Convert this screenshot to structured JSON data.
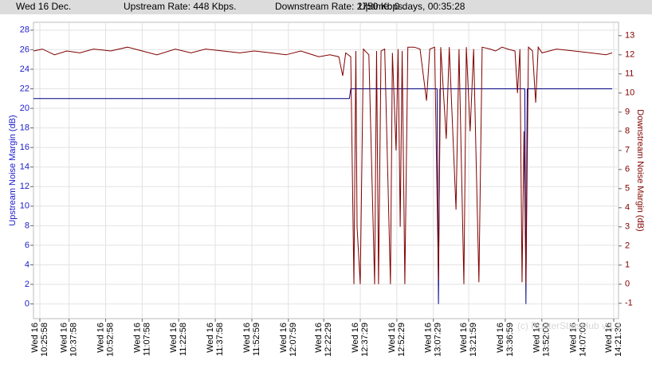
{
  "chart_data": {
    "type": "line",
    "header": {
      "date": "Wed 16 Dec.",
      "upstream_rate": "Upstream Rate: 448 Kbps.",
      "downstream_rate": "Downstream Rate: 2750 Kbps.",
      "uptime": "Uptime: 0 days, 00:35:28"
    },
    "ylabel": "Upstream Noise Margin (dB)",
    "y2label": "Downstream Noise Margin (dB)",
    "watermark": "(c) RouterStatsHub v.1.1",
    "xlim": [
      "10:23:21",
      "14:23:28"
    ],
    "xtick_day": "Wed 16",
    "xticks": [
      "10:25:58",
      "10:37:58",
      "10:52:58",
      "11:07:58",
      "11:22:58",
      "11:37:58",
      "11:52:59",
      "12:07:59",
      "12:22:29",
      "12:37:29",
      "12:52:29",
      "13:07:29",
      "13:21:59",
      "13:36:59",
      "13:52:00",
      "14:07:00",
      "14:21:30"
    ],
    "ylim": [
      -1.5,
      28.8
    ],
    "yticks": [
      0,
      2,
      4,
      6,
      8,
      10,
      12,
      14,
      16,
      18,
      20,
      22,
      24,
      26,
      28
    ],
    "y2lim": [
      -1.8,
      13.7
    ],
    "y2ticks": [
      -1,
      0,
      1,
      2,
      3,
      4,
      5,
      6,
      7,
      8,
      9,
      10,
      11,
      12,
      13
    ],
    "grid": true,
    "series": [
      {
        "name": "Upstream",
        "color": "#000080",
        "x": [
          "10:23:21",
          "12:33:00",
          "12:33:34",
          "13:09:00",
          "13:09:34",
          "13:10:10",
          "13:45:00",
          "13:45:28",
          "13:46:00",
          "14:20:52"
        ],
        "values": [
          21,
          21,
          22,
          22,
          0,
          22,
          22,
          0,
          22,
          22
        ]
      },
      {
        "name": "Downstream",
        "color": "#800000",
        "axis": "y2",
        "x": [
          "10:23:21",
          "10:27:00",
          "10:32:00",
          "10:37:00",
          "10:42:20",
          "10:48:00",
          "10:55:00",
          "11:01:57",
          "11:08:00",
          "11:14:00",
          "11:21:34",
          "11:28:00",
          "11:34:00",
          "11:41:10",
          "11:48:00",
          "11:54:00",
          "12:00:50",
          "12:07:00",
          "12:13:00",
          "12:20:28",
          "12:25:00",
          "12:28:40",
          "12:30:16",
          "12:31:30",
          "12:33:34",
          "12:34:52",
          "12:35:40",
          "12:36:10",
          "12:37:28",
          "12:38:46",
          "12:41:00",
          "12:43:22",
          "12:44:10",
          "12:44:58",
          "12:46:00",
          "12:47:30",
          "12:49:52",
          "12:50:40",
          "12:52:10",
          "12:53:00",
          "12:53:52",
          "12:54:40",
          "12:55:46",
          "12:57:00",
          "12:59:40",
          "13:02:00",
          "13:04:40",
          "13:06:00",
          "13:08:00",
          "13:09:34",
          "13:10:30",
          "13:12:46",
          "13:14:00",
          "13:16:46",
          "13:18:00",
          "13:20:00",
          "13:21:00",
          "13:22:34",
          "13:24:00",
          "13:26:10",
          "13:27:30",
          "13:30:46",
          "13:33:00",
          "13:35:40",
          "13:38:00",
          "13:40:58",
          "13:42:00",
          "13:43:00",
          "13:43:52",
          "13:44:40",
          "13:45:28",
          "13:46:30",
          "13:48:10",
          "13:49:28",
          "13:50:30",
          "13:52:04",
          "13:58:00",
          "14:05:10",
          "14:12:00",
          "14:18:16",
          "14:20:52"
        ],
        "values": [
          12.2,
          12.3,
          12.0,
          12.2,
          12.1,
          12.3,
          12.2,
          12.4,
          12.2,
          12.0,
          12.3,
          12.1,
          12.3,
          12.2,
          12.1,
          12.2,
          12.1,
          12.0,
          12.2,
          11.9,
          12.0,
          11.9,
          10.9,
          12.1,
          11.9,
          0.0,
          12.2,
          3.0,
          0.0,
          12.3,
          12.0,
          0.0,
          12.2,
          0.0,
          12.2,
          12.3,
          0.0,
          12.1,
          7.0,
          12.3,
          3.0,
          12.2,
          0.0,
          12.4,
          12.4,
          12.3,
          9.6,
          12.3,
          12.4,
          0.2,
          12.4,
          7.6,
          12.4,
          3.9,
          12.3,
          0.0,
          12.4,
          8.0,
          12.3,
          0.1,
          12.4,
          12.3,
          12.2,
          12.4,
          12.3,
          12.2,
          10.0,
          12.3,
          0.1,
          8.0,
          0.0,
          12.4,
          12.2,
          9.5,
          12.4,
          12.1,
          12.3,
          12.2,
          12.1,
          12.0,
          12.1
        ]
      }
    ]
  }
}
